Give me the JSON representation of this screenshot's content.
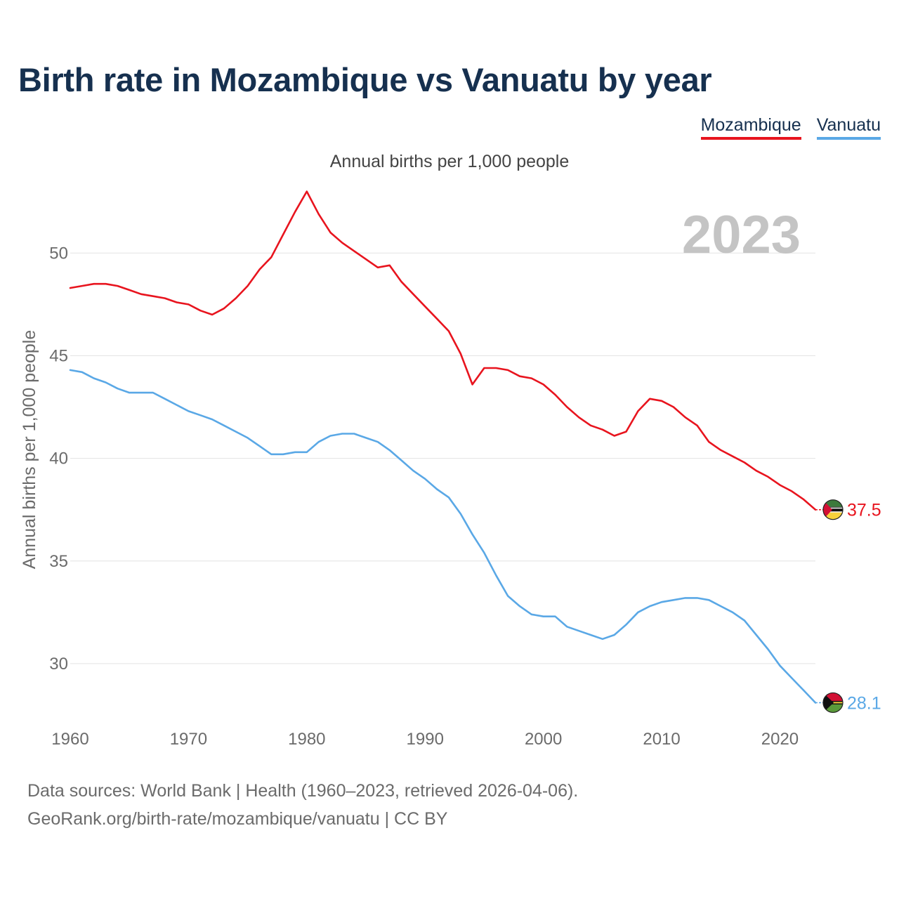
{
  "title": "Birth rate in Mozambique vs Vanuatu by year",
  "subtitle": "Annual births per 1,000 people",
  "legend": [
    {
      "name": "Mozambique",
      "color": "#e8141e"
    },
    {
      "name": "Vanuatu",
      "color": "#5aa8e6"
    }
  ],
  "year_badge": "2023",
  "footer": {
    "line1": "Data sources: World Bank | Health (1960–2023, retrieved 2026-04-06).",
    "line2": "GeoRank.org/birth-rate/mozambique/vanuatu | CC BY"
  },
  "colors": {
    "mozambique": "#e8141e",
    "vanuatu": "#5aa8e6",
    "title": "#16304f",
    "grid": "#e3e3e3",
    "tick_text": "#6b6b6b",
    "badge": "#c4c4c4"
  },
  "chart_data": {
    "type": "line",
    "title": "Birth rate in Mozambique vs Vanuatu by year",
    "xlabel": "",
    "ylabel": "Annual births per 1,000 people",
    "xlim": [
      1960,
      2023
    ],
    "ylim": [
      27.5,
      53.5
    ],
    "x_ticks": [
      1960,
      1970,
      1980,
      1990,
      2000,
      2010,
      2020
    ],
    "y_ticks": [
      30,
      35,
      40,
      45,
      50
    ],
    "grid": true,
    "legend_position": "top-right",
    "x": [
      1960,
      1961,
      1962,
      1963,
      1964,
      1965,
      1966,
      1967,
      1968,
      1969,
      1970,
      1971,
      1972,
      1973,
      1974,
      1975,
      1976,
      1977,
      1978,
      1979,
      1980,
      1981,
      1982,
      1983,
      1984,
      1985,
      1986,
      1987,
      1988,
      1989,
      1990,
      1991,
      1992,
      1993,
      1994,
      1995,
      1996,
      1997,
      1998,
      1999,
      2000,
      2001,
      2002,
      2003,
      2004,
      2005,
      2006,
      2007,
      2008,
      2009,
      2010,
      2011,
      2012,
      2013,
      2014,
      2015,
      2016,
      2017,
      2018,
      2019,
      2020,
      2021,
      2022,
      2023
    ],
    "series": [
      {
        "name": "Mozambique",
        "end_label": "37.5",
        "values": [
          48.3,
          48.4,
          48.5,
          48.5,
          48.4,
          48.2,
          48.0,
          47.9,
          47.8,
          47.6,
          47.5,
          47.2,
          47.0,
          47.3,
          47.8,
          48.4,
          49.2,
          49.8,
          50.9,
          52.0,
          53.0,
          51.9,
          51.0,
          50.5,
          50.1,
          49.7,
          49.3,
          49.4,
          48.6,
          48.0,
          47.4,
          46.8,
          46.2,
          45.1,
          43.6,
          44.4,
          44.4,
          44.3,
          44.0,
          43.9,
          43.6,
          43.1,
          42.5,
          42.0,
          41.6,
          41.4,
          41.1,
          41.3,
          42.3,
          42.9,
          42.8,
          42.5,
          42.0,
          41.6,
          40.8,
          40.4,
          40.1,
          39.8,
          39.4,
          39.1,
          38.7,
          38.4,
          38.0,
          37.5
        ]
      },
      {
        "name": "Vanuatu",
        "end_label": "28.1",
        "values": [
          44.3,
          44.2,
          43.9,
          43.7,
          43.4,
          43.2,
          43.2,
          43.2,
          42.9,
          42.6,
          42.3,
          42.1,
          41.9,
          41.6,
          41.3,
          41.0,
          40.6,
          40.2,
          40.2,
          40.3,
          40.3,
          40.8,
          41.1,
          41.2,
          41.2,
          41.0,
          40.8,
          40.4,
          39.9,
          39.4,
          39.0,
          38.5,
          38.1,
          37.3,
          36.3,
          35.4,
          34.3,
          33.3,
          32.8,
          32.4,
          32.3,
          32.3,
          31.8,
          31.6,
          31.4,
          31.2,
          31.4,
          31.9,
          32.5,
          32.8,
          33.0,
          33.1,
          33.2,
          33.2,
          33.1,
          32.8,
          32.5,
          32.1,
          31.4,
          30.7,
          29.9,
          29.3,
          28.7,
          28.1
        ]
      }
    ]
  }
}
